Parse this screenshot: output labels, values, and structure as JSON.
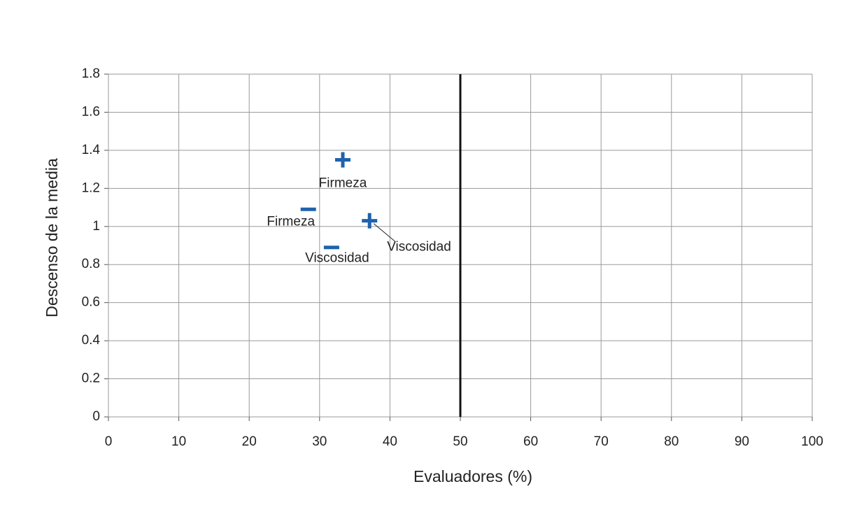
{
  "chart_data": {
    "type": "scatter",
    "x_label": "Evaluadores (%)",
    "y_label": "Descenso de la media",
    "xlim": [
      0,
      100
    ],
    "ylim": [
      0,
      1.8
    ],
    "xticks": [
      0,
      10,
      20,
      30,
      40,
      50,
      60,
      70,
      80,
      90,
      100
    ],
    "yticks": [
      0,
      0.2,
      0.4,
      0.6,
      0.8,
      1,
      1.2,
      1.4,
      1.6,
      1.8
    ],
    "grid": true,
    "vline": 50,
    "series": [
      {
        "marker": "plus",
        "color": "#1f62ad",
        "x": [
          33.3,
          37.1
        ],
        "y": [
          1.35,
          1.03
        ],
        "labels": [
          "Firmeza",
          "Viscosidad"
        ]
      },
      {
        "marker": "minus",
        "color": "#1f62ad",
        "x": [
          28.4,
          31.7
        ],
        "y": [
          1.09,
          0.89
        ],
        "labels": [
          "Firmeza",
          "Viscosidad"
        ]
      }
    ]
  }
}
